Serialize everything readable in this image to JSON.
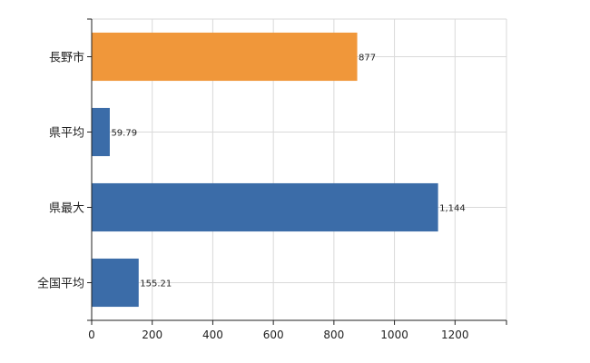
{
  "chart_data": {
    "type": "bar",
    "orientation": "horizontal",
    "categories": [
      "長野市",
      "県平均",
      "県最大",
      "全国平均"
    ],
    "values": [
      877,
      59.79,
      1144,
      155.21
    ],
    "data_labels": [
      "877",
      "59.79",
      "1,144",
      "155.21"
    ],
    "bar_colors": [
      "#f0973a",
      "#3b6ca8",
      "#3b6ca8",
      "#3b6ca8"
    ],
    "xlim": [
      0,
      1370
    ],
    "x_ticks": [
      0,
      200,
      400,
      600,
      800,
      1000,
      1200
    ],
    "x_tick_labels": [
      "0",
      "200",
      "400",
      "600",
      "800",
      "1000",
      "1200"
    ],
    "grid": true,
    "title": "",
    "xlabel": "",
    "ylabel": ""
  }
}
